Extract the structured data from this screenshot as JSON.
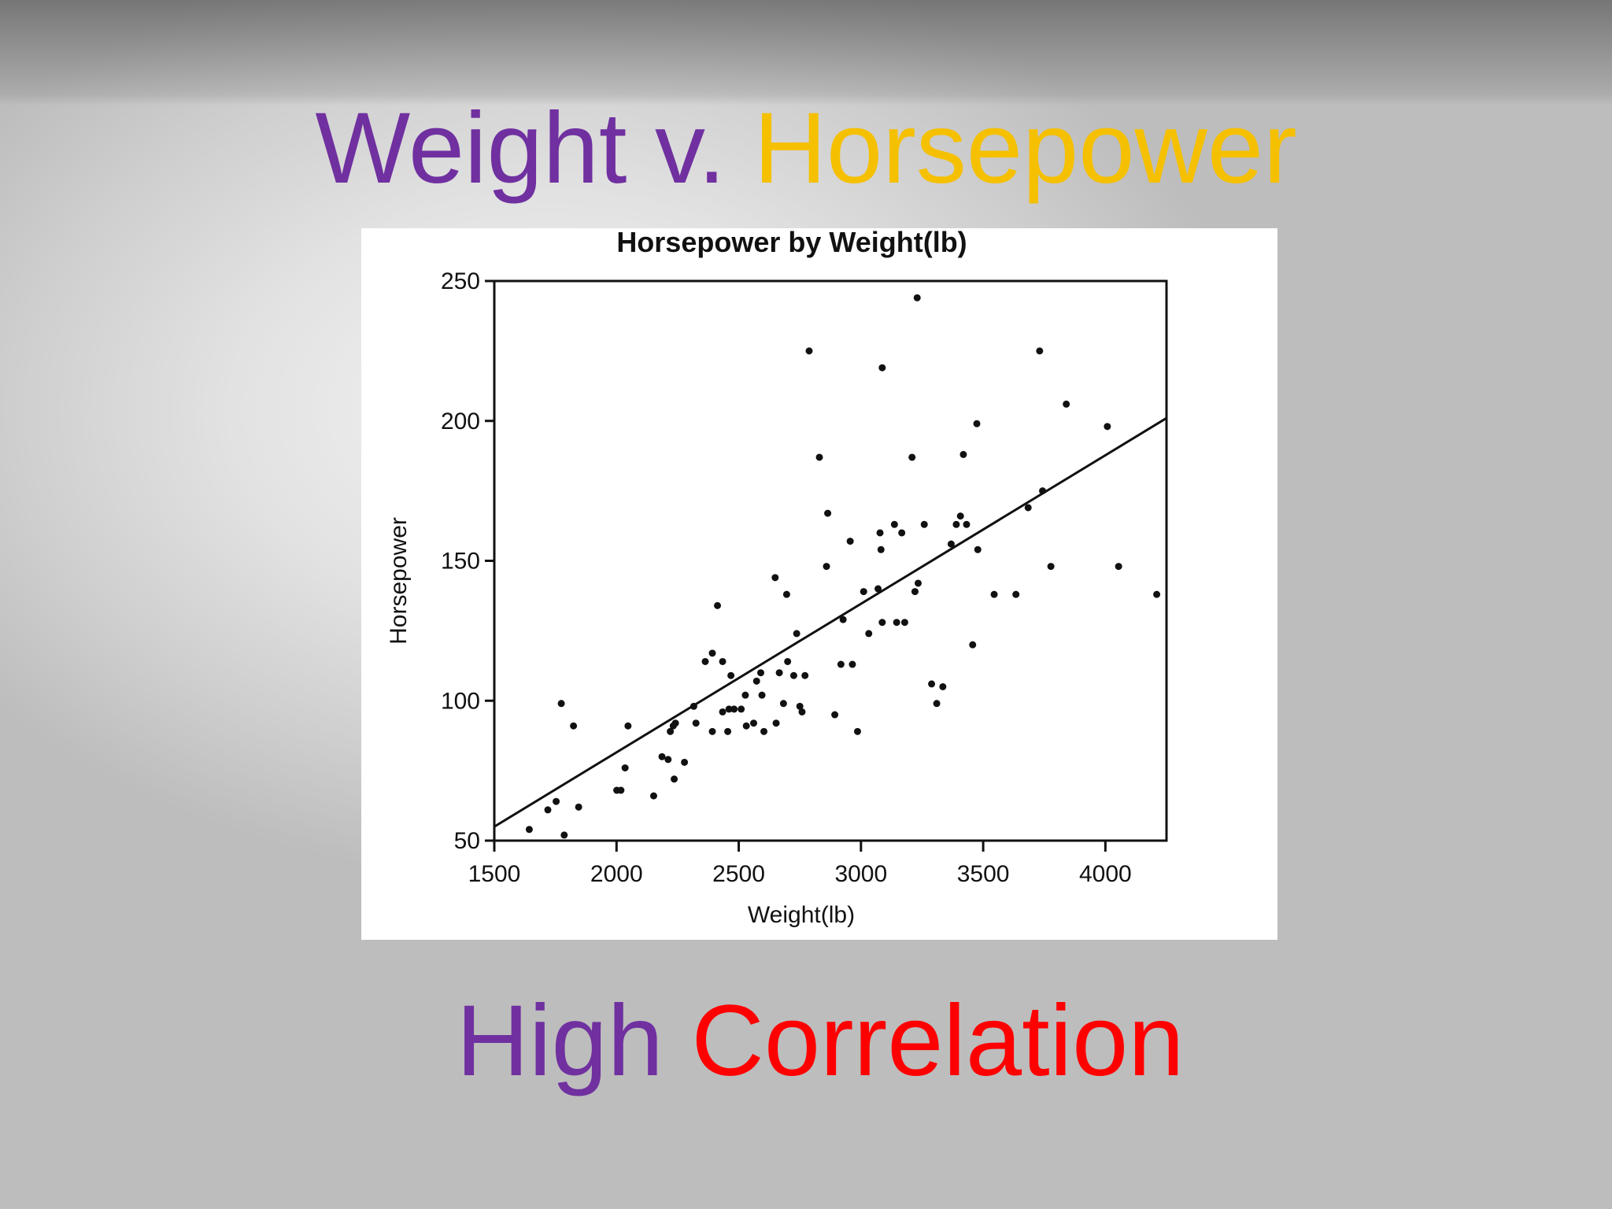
{
  "slide": {
    "title": [
      "Weight v.",
      "Horsepower"
    ],
    "caption": [
      "High",
      "Correlation"
    ]
  },
  "chart_data": {
    "type": "scatter",
    "title": "Horsepower by Weight(lb)",
    "x_label": "Weight(lb)",
    "y_label": "Horsepower",
    "xlim": [
      1500,
      4250
    ],
    "ylim": [
      50,
      250
    ],
    "xticks": [
      1500,
      2000,
      2500,
      3000,
      3500,
      4000
    ],
    "yticks": [
      50,
      100,
      150,
      200,
      250
    ],
    "series": [
      {
        "color": "#111111",
        "x": [
          1643,
          1719,
          1753,
          1774,
          1786,
          1824,
          1845,
          2001,
          2018,
          2035,
          2047,
          2152,
          2186,
          2211,
          2220,
          2232,
          2241,
          2236,
          2278,
          2316,
          2325,
          2363,
          2392,
          2392,
          2413,
          2434,
          2434,
          2455,
          2460,
          2468,
          2481,
          2510,
          2527,
          2531,
          2561,
          2573,
          2590,
          2595,
          2603,
          2649,
          2653,
          2666,
          2683,
          2696,
          2700,
          2725,
          2737,
          2750,
          2759,
          2771,
          2788,
          2830,
          2859,
          2864,
          2893,
          2918,
          2927,
          2956,
          2965,
          2986,
          3011,
          3032,
          3070,
          3078,
          3082,
          3087,
          3087,
          3137,
          3146,
          3167,
          3179,
          3209,
          3221,
          3230,
          3234,
          3259,
          3289,
          3310,
          3335,
          3369,
          3390,
          3407,
          3419,
          3432,
          3457,
          3474,
          3478,
          3545,
          3634,
          3684,
          3731,
          3743,
          3777,
          3840,
          4008,
          4054,
          4210
        ],
        "y": [
          54,
          61,
          64,
          99,
          52,
          91,
          62,
          68,
          68,
          76,
          91,
          66,
          80,
          79,
          89,
          91,
          92,
          72,
          78,
          98,
          92,
          114,
          117,
          89,
          134,
          114,
          96,
          89,
          97,
          109,
          97,
          97,
          102,
          91,
          92,
          107,
          110,
          102,
          89,
          144,
          92,
          110,
          99,
          138,
          114,
          109,
          124,
          98,
          96,
          109,
          225,
          187,
          148,
          167,
          95,
          113,
          129,
          157,
          113,
          89,
          139,
          124,
          140,
          160,
          154,
          219,
          128,
          163,
          128,
          160,
          128,
          187,
          139,
          244,
          142,
          163,
          106,
          99,
          105,
          156,
          163,
          166,
          188,
          163,
          120,
          199,
          154,
          138,
          138,
          169,
          225,
          175,
          148,
          206,
          198,
          148,
          138
        ]
      }
    ],
    "trendline": {
      "color": "#111111",
      "x": [
        1500,
        4250
      ],
      "y": [
        55,
        201
      ]
    }
  }
}
